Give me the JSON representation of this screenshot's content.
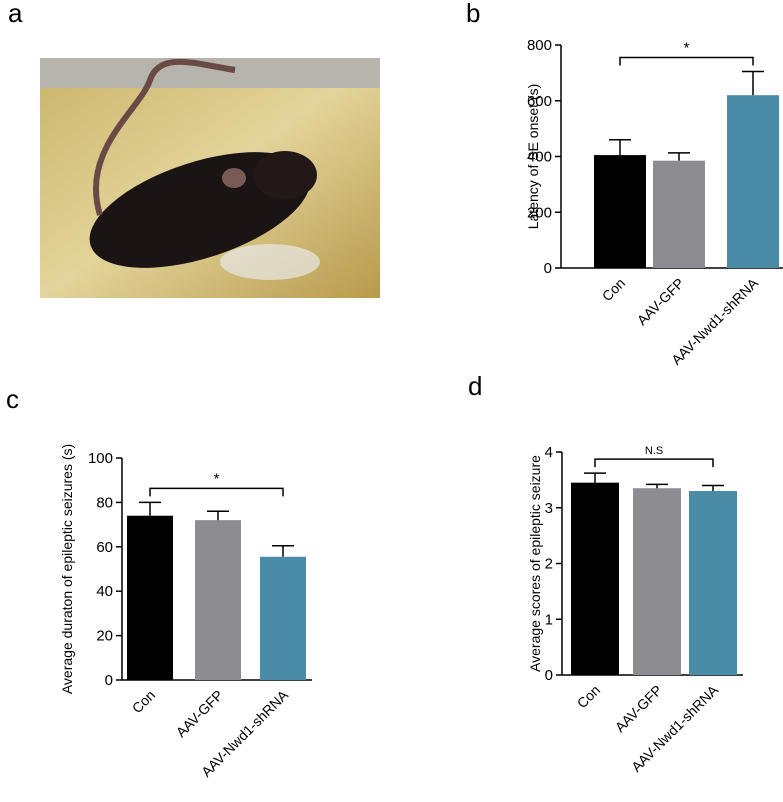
{
  "panels": [
    "a",
    "b",
    "c",
    "d"
  ],
  "chart_data": [
    {
      "type": "bar",
      "ylabel": "Latency of SE onset (s)",
      "categories": [
        "Con",
        "AAV-GFP",
        "AAV-Nwd1-shRNA"
      ],
      "values": [
        405,
        385,
        620
      ],
      "errors": [
        55,
        28,
        85
      ],
      "colors": [
        "#000000",
        "#8c8c91",
        "#4a8ba8"
      ],
      "ylim": [
        0,
        800
      ],
      "yticks": [
        0,
        200,
        400,
        600,
        800
      ],
      "annotation": "*"
    },
    {
      "type": "bar",
      "ylabel": "Average duraton of epileptic seizures (s)",
      "categories": [
        "Con",
        "AAV-GFP",
        "AAV-Nwd1-shRNA"
      ],
      "values": [
        74,
        72,
        55.5
      ],
      "errors": [
        6,
        4,
        5
      ],
      "colors": [
        "#000000",
        "#8c8c91",
        "#4a8ba8"
      ],
      "ylim": [
        0,
        100
      ],
      "yticks": [
        0,
        20,
        40,
        60,
        80,
        100
      ],
      "annotation": "*"
    },
    {
      "type": "bar",
      "ylabel": "Average scores of epileptic seizure",
      "categories": [
        "Con",
        "AAV-GFP",
        "AAV-Nwd1-shRNA"
      ],
      "values": [
        3.45,
        3.35,
        3.3
      ],
      "errors": [
        0.17,
        0.07,
        0.1
      ],
      "colors": [
        "#000000",
        "#8c8c91",
        "#4a8ba8"
      ],
      "ylim": [
        0,
        4
      ],
      "yticks": [
        0,
        1,
        2,
        3,
        4
      ],
      "annotation": "N.S"
    }
  ]
}
